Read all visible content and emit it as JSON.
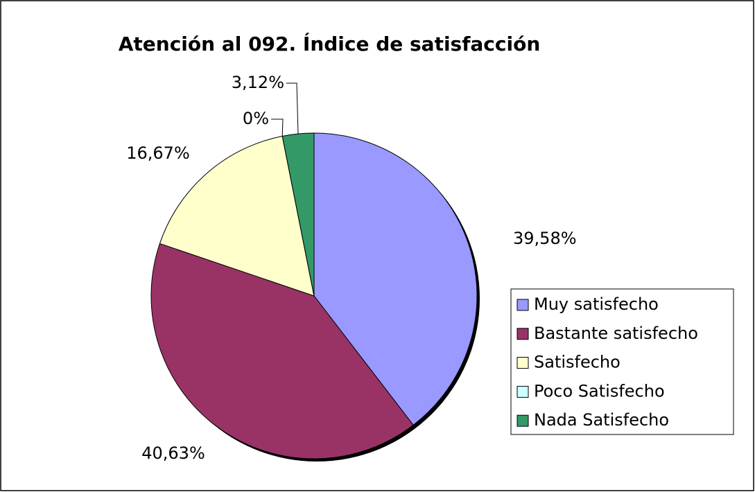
{
  "chart_data": {
    "type": "pie",
    "title": "Atención al 092. Índice de satisfacción",
    "categories": [
      "Muy satisfecho",
      "Bastante satisfecho",
      "Satisfecho",
      "Poco Satisfecho",
      "Nada Satisfecho"
    ],
    "values": [
      39.58,
      40.63,
      16.67,
      0,
      3.12
    ],
    "value_labels": [
      "39,58%",
      "40,63%",
      "16,67%",
      "0%",
      "3,12%"
    ],
    "colors": [
      "#9999ff",
      "#993366",
      "#ffffcc",
      "#ccffff",
      "#339966"
    ],
    "legend": "right"
  }
}
